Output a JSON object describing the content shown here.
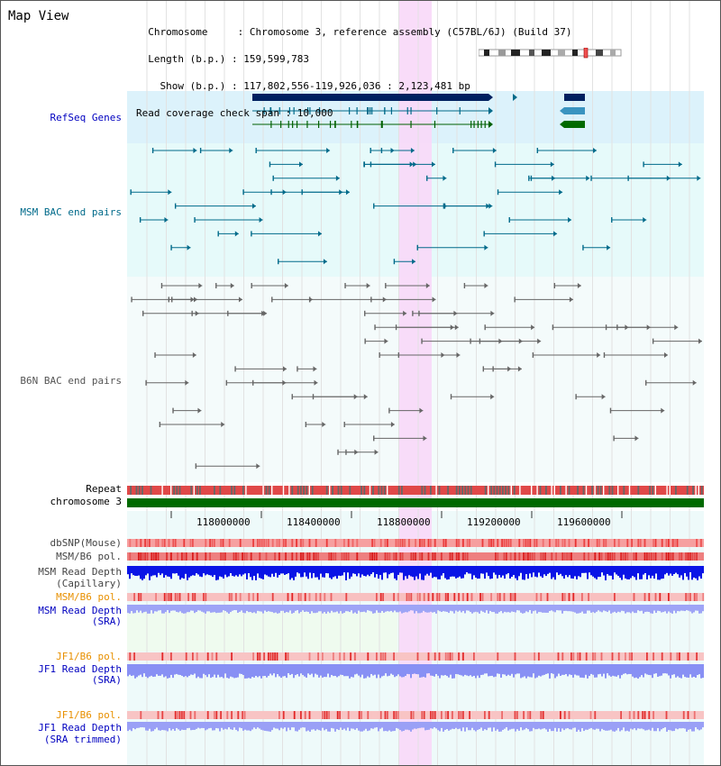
{
  "header": {
    "title": "Map View",
    "info_lines": [
      "  Chromosome     : Chromosome 3, reference assembly (C57BL/6J) (Build 37)",
      "  Length (b.p.) : 159,599,783",
      "    Show (b.p.) : 117,802,556-119,926,036 : 2,123,481 bp",
      "Read coverage check span : 10,000"
    ]
  },
  "tracks": {
    "refseq": "RefSeq Genes",
    "msm_bac": "MSM BAC end pairs",
    "b6n_bac": "B6N BAC end pairs",
    "repeat": "Repeat",
    "chromosome": "chromosome 3",
    "dbsnp": "dbSNP(Mouse)",
    "msm_b6_pol": "MSM/B6 pol.",
    "msm_read_depth_cap": "MSM Read Depth",
    "msm_read_depth_cap_sub": "(Capillary)",
    "msm_b6_pol_sra": "MSM/B6 pol.",
    "msm_read_depth_sra": "MSM Read Depth",
    "msm_read_depth_sra_sub": "(SRA)",
    "jf1_b6_pol": "JF1/B6 pol.",
    "jf1_read_depth": "JF1 Read Depth",
    "jf1_read_depth_sub": "(SRA)",
    "jf1_b6_pol_trim": "JF1/B6 pol.",
    "jf1_read_depth_trim": "JF1 Read Depth",
    "jf1_read_depth_trim_sub": "(SRA trimmed)"
  },
  "ruler": {
    "ticks": [
      "118000000",
      "118400000",
      "118800000",
      "119200000",
      "119600000"
    ]
  },
  "colors": {
    "refseq_bg": "#dcf2fb",
    "msm_bg": "#e6fafa",
    "b6n_bg": "#f4fbfb",
    "highlight": "#f8d8f8",
    "navy": "#002060",
    "teal": "#006a8a",
    "gray": "#555555",
    "green": "#006a00",
    "depth_blue": "#0a14e6",
    "light_blue": "#8890f4",
    "orange_label": "#e89000",
    "dark_blue_label": "#0000c0"
  }
}
